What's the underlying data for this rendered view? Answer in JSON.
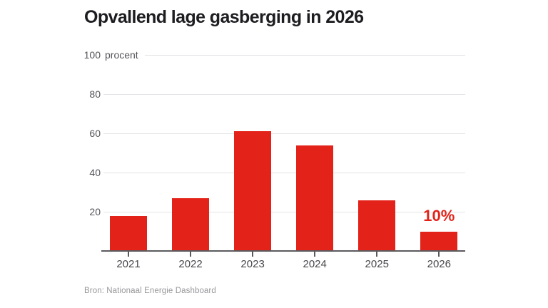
{
  "chart_data": {
    "type": "bar",
    "title": "Opvallend lage gasberging in 2026",
    "categories": [
      "2021",
      "2022",
      "2023",
      "2024",
      "2025",
      "2026"
    ],
    "values": [
      18,
      27,
      61,
      54,
      26,
      10
    ],
    "yticks": [
      20,
      40,
      60,
      80,
      100
    ],
    "ylim": [
      0,
      100
    ],
    "unit_label": "procent",
    "ylabel": "",
    "xlabel": "",
    "grid": "horizontal",
    "legend": "none",
    "bar_color": "#e32219",
    "annotation": {
      "text": "10%",
      "category": "2026",
      "color": "#e32219"
    },
    "source": "Bron: Nationaal Energie Dashboard"
  }
}
